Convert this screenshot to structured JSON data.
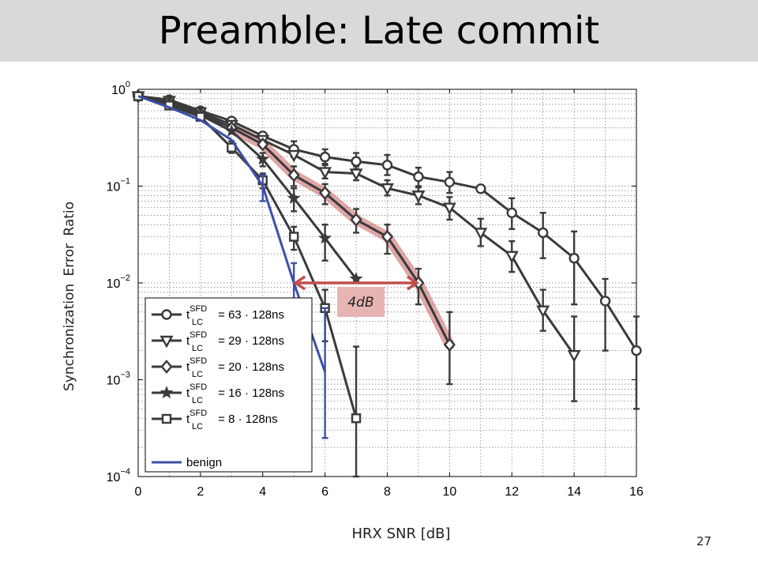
{
  "slide": {
    "title": "Preamble: Late commit",
    "page_number": "27"
  },
  "chart_data": {
    "type": "line",
    "x_label": "HRX SNR [dB]",
    "y_label": "Synchronization  Error Ratio",
    "y_scale": "log",
    "x_range": [
      0,
      16
    ],
    "y_range": [
      0.0001,
      1
    ],
    "x_ticks": [
      0,
      2,
      4,
      6,
      8,
      10,
      12,
      14,
      16
    ],
    "y_ticks": [
      {
        "value": 1,
        "base": "10",
        "exp": "0"
      },
      {
        "value": 0.1,
        "base": "10",
        "exp": "−1"
      },
      {
        "value": 0.01,
        "base": "10",
        "exp": "−2"
      },
      {
        "value": 0.001,
        "base": "10",
        "exp": "−3"
      },
      {
        "value": 0.0001,
        "base": "10",
        "exp": "−4"
      }
    ],
    "grid": true,
    "legend_position": "bottom-left",
    "series": [
      {
        "key": "t63",
        "label_main": "t",
        "label_sup": "SFD",
        "label_sub": "LC",
        "label_rest": " = 63 · 128ns",
        "marker": "circle",
        "color": "#3a3a3a",
        "x": [
          0,
          1,
          2,
          3,
          4,
          5,
          6,
          7,
          8,
          9,
          10,
          11,
          12,
          13,
          14,
          15,
          16
        ],
        "y": [
          0.85,
          0.78,
          0.6,
          0.47,
          0.33,
          0.24,
          0.2,
          0.18,
          0.165,
          0.125,
          0.11,
          0.094,
          0.053,
          0.033,
          0.018,
          0.0065,
          0.002
        ],
        "err_low": [
          null,
          null,
          null,
          null,
          null,
          0.2,
          0.17,
          0.15,
          0.13,
          0.1,
          0.085,
          null,
          0.036,
          0.018,
          0.006,
          0.002,
          0.0005
        ],
        "err_high": [
          null,
          null,
          null,
          null,
          null,
          0.29,
          0.24,
          0.22,
          0.21,
          0.155,
          0.14,
          null,
          0.075,
          0.053,
          0.034,
          0.011,
          0.0045
        ]
      },
      {
        "key": "t29",
        "label_main": "t",
        "label_sup": "SFD",
        "label_sub": "LC",
        "label_rest": " = 29 · 128ns",
        "marker": "triangle-down",
        "color": "#3a3a3a",
        "x": [
          0,
          1,
          2,
          3,
          4,
          5,
          6,
          7,
          8,
          9,
          10,
          11,
          12,
          13,
          14
        ],
        "y": [
          0.85,
          0.76,
          0.58,
          0.43,
          0.3,
          0.21,
          0.14,
          0.135,
          0.095,
          0.08,
          0.06,
          0.033,
          0.019,
          0.0052,
          0.0018
        ],
        "err_low": [
          null,
          null,
          null,
          null,
          null,
          null,
          0.12,
          0.115,
          0.08,
          0.065,
          0.045,
          0.024,
          0.013,
          0.0032,
          0.0006
        ],
        "err_high": [
          null,
          null,
          null,
          null,
          null,
          null,
          0.165,
          0.16,
          0.115,
          0.097,
          0.077,
          0.046,
          0.027,
          0.0085,
          0.0045
        ]
      },
      {
        "key": "t20",
        "label_main": "t",
        "label_sup": "SFD",
        "label_sub": "LC",
        "label_rest": " = 20 · 128ns",
        "marker": "diamond",
        "color": "#3a3a3a",
        "x": [
          0,
          1,
          2,
          3,
          4,
          5,
          6,
          7,
          8,
          9,
          10
        ],
        "y": [
          0.85,
          0.74,
          0.56,
          0.4,
          0.27,
          0.13,
          0.085,
          0.045,
          0.03,
          0.01,
          0.0023
        ],
        "err_low": [
          null,
          null,
          null,
          null,
          null,
          0.1,
          0.065,
          0.033,
          0.02,
          0.006,
          0.0009
        ],
        "err_high": [
          null,
          null,
          null,
          null,
          null,
          0.16,
          0.105,
          0.058,
          0.04,
          0.014,
          0.005
        ]
      },
      {
        "key": "t16",
        "label_main": "t",
        "label_sup": "SFD",
        "label_sub": "LC",
        "label_rest": " = 16 · 128ns",
        "marker": "star",
        "color": "#3a3a3a",
        "x": [
          0,
          1,
          2,
          3,
          4,
          5,
          6,
          7
        ],
        "y": [
          0.85,
          0.72,
          0.54,
          0.37,
          0.19,
          0.075,
          0.029,
          0.011
        ],
        "err_low": [
          null,
          null,
          null,
          null,
          0.16,
          0.055,
          0.017,
          null
        ],
        "err_high": [
          null,
          null,
          null,
          null,
          0.22,
          0.095,
          0.04,
          null
        ]
      },
      {
        "key": "t8",
        "label_main": "t",
        "label_sup": "SFD",
        "label_sub": "LC",
        "label_rest": " = 8 · 128ns",
        "marker": "square",
        "color": "#3a3a3a",
        "x": [
          0,
          1,
          2,
          3,
          4,
          5,
          6,
          7
        ],
        "y": [
          0.85,
          0.68,
          0.52,
          0.25,
          0.115,
          0.03,
          0.0055,
          0.0004
        ],
        "err_low": [
          null,
          null,
          null,
          0.22,
          0.095,
          0.022,
          0.0025,
          0.0001
        ],
        "err_high": [
          null,
          null,
          null,
          0.29,
          0.135,
          0.038,
          0.0085,
          0.0022
        ]
      },
      {
        "key": "benign",
        "label_main": "benign",
        "label_sup": "",
        "label_sub": "",
        "label_rest": "",
        "marker": "none",
        "color": "#3d4fa8",
        "x": [
          0,
          1,
          2,
          3,
          4,
          5,
          6
        ],
        "y": [
          0.85,
          0.65,
          0.48,
          0.3,
          0.1,
          0.01,
          0.0012
        ],
        "err_low": [
          null,
          null,
          null,
          null,
          0.07,
          0.0048,
          0.00025
        ],
        "err_high": [
          null,
          null,
          null,
          null,
          0.13,
          0.016,
          0.0055
        ]
      }
    ],
    "annotation": {
      "label": "4dB",
      "x_from": 5,
      "x_to": 9,
      "y": 0.01,
      "color": "#c0504d"
    }
  }
}
